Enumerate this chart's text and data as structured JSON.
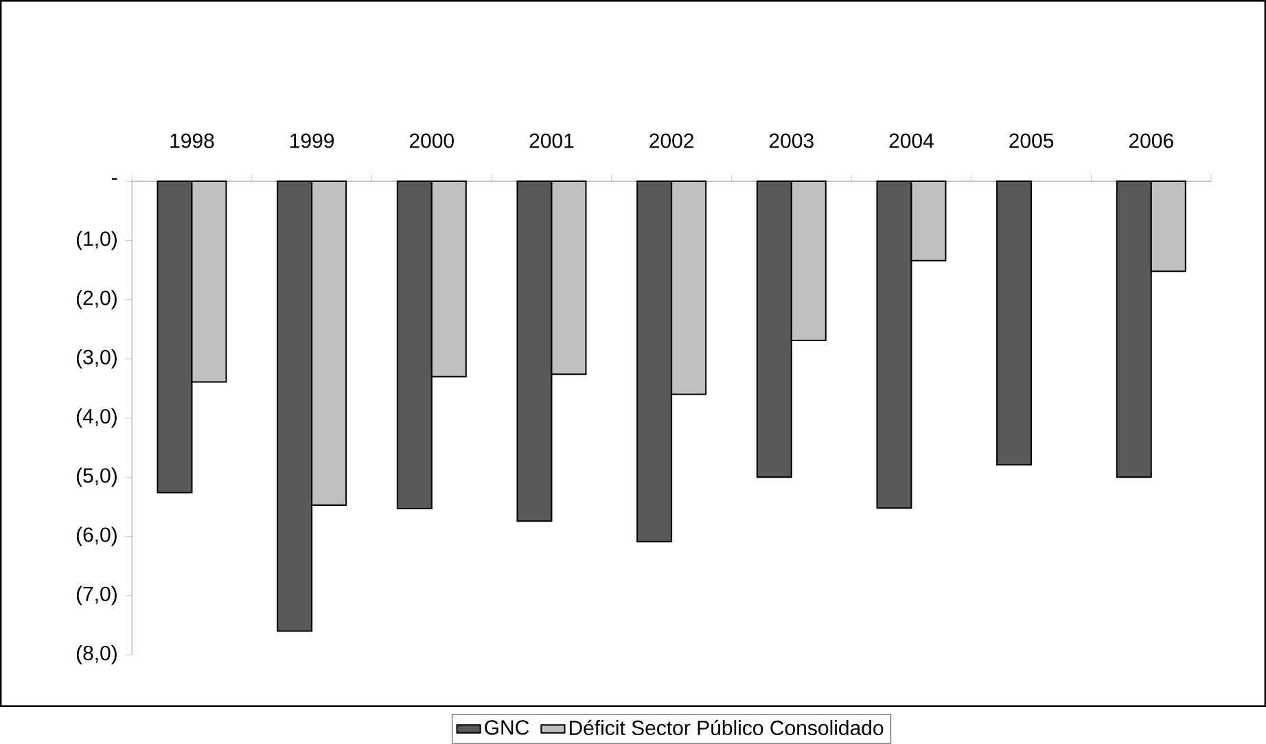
{
  "chart_data": {
    "type": "bar",
    "categories": [
      "1998",
      "1999",
      "2000",
      "2001",
      "2002",
      "2003",
      "2004",
      "2005",
      "2006"
    ],
    "series": [
      {
        "name": "GNC",
        "color": "#595959",
        "values": [
          -5.26,
          -7.6,
          -5.53,
          -5.74,
          -6.09,
          -5.0,
          -5.52,
          -4.79,
          -5.0
        ]
      },
      {
        "name": "Déficit Sector Público Consolidado",
        "color": "#c0c0c0",
        "values": [
          -3.39,
          -5.47,
          -3.3,
          -3.26,
          -3.6,
          -2.69,
          -1.34,
          null,
          -1.52
        ]
      }
    ],
    "ylim": [
      -8,
      0
    ],
    "yticks": [
      {
        "value": 0,
        "label": "-"
      },
      {
        "value": -1,
        "label": "(1,0)"
      },
      {
        "value": -2,
        "label": "(2,0)"
      },
      {
        "value": -3,
        "label": "(3,0)"
      },
      {
        "value": -4,
        "label": "(4,0)"
      },
      {
        "value": -5,
        "label": "(5,0)"
      },
      {
        "value": -6,
        "label": "(6,0)"
      },
      {
        "value": -7,
        "label": "(7,0)"
      },
      {
        "value": -8,
        "label": "(8,0)"
      }
    ],
    "legend": "bottom"
  }
}
